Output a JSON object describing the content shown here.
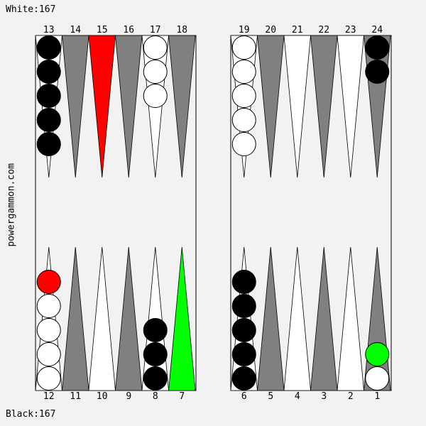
{
  "score_white": "White:167",
  "score_black": "Black:167",
  "site": "powergammon.com",
  "colors": {
    "dark_point": "#808080",
    "light_point": "#ffffff",
    "highlight_from": "#ff0000",
    "highlight_to": "#00ff00",
    "black_checker": "#000000",
    "white_checker": "#ffffff",
    "board_bg": "#f2f2f2"
  },
  "top_numbers": [
    "13",
    "14",
    "15",
    "16",
    "17",
    "18",
    "19",
    "20",
    "21",
    "22",
    "23",
    "24"
  ],
  "bottom_numbers": [
    "12",
    "11",
    "10",
    "9",
    "8",
    "7",
    "6",
    "5",
    "4",
    "3",
    "2",
    "1"
  ],
  "points": [
    {
      "point": 1,
      "checkers": [
        "white",
        "green"
      ],
      "highlight": null
    },
    {
      "point": 2,
      "checkers": [],
      "highlight": null
    },
    {
      "point": 3,
      "checkers": [],
      "highlight": null
    },
    {
      "point": 4,
      "checkers": [],
      "highlight": null
    },
    {
      "point": 5,
      "checkers": [],
      "highlight": null
    },
    {
      "point": 6,
      "checkers": [
        "black",
        "black",
        "black",
        "black",
        "black"
      ],
      "highlight": null
    },
    {
      "point": 7,
      "checkers": [],
      "highlight": "to"
    },
    {
      "point": 8,
      "checkers": [
        "black",
        "black",
        "black"
      ],
      "highlight": null
    },
    {
      "point": 9,
      "checkers": [],
      "highlight": null
    },
    {
      "point": 10,
      "checkers": [],
      "highlight": null
    },
    {
      "point": 11,
      "checkers": [],
      "highlight": null
    },
    {
      "point": 12,
      "checkers": [
        "white",
        "white",
        "white",
        "white",
        "red"
      ],
      "highlight": null
    },
    {
      "point": 13,
      "checkers": [
        "black",
        "black",
        "black",
        "black",
        "black"
      ],
      "highlight": null
    },
    {
      "point": 14,
      "checkers": [],
      "highlight": null
    },
    {
      "point": 15,
      "checkers": [],
      "highlight": "from"
    },
    {
      "point": 16,
      "checkers": [],
      "highlight": null
    },
    {
      "point": 17,
      "checkers": [
        "white",
        "white",
        "white"
      ],
      "highlight": null
    },
    {
      "point": 18,
      "checkers": [],
      "highlight": null
    },
    {
      "point": 19,
      "checkers": [
        "white",
        "white",
        "white",
        "white",
        "white"
      ],
      "highlight": null
    },
    {
      "point": 20,
      "checkers": [],
      "highlight": null
    },
    {
      "point": 21,
      "checkers": [],
      "highlight": null
    },
    {
      "point": 22,
      "checkers": [],
      "highlight": null
    },
    {
      "point": 23,
      "checkers": [],
      "highlight": null
    },
    {
      "point": 24,
      "checkers": [
        "black",
        "black"
      ],
      "highlight": null
    }
  ]
}
